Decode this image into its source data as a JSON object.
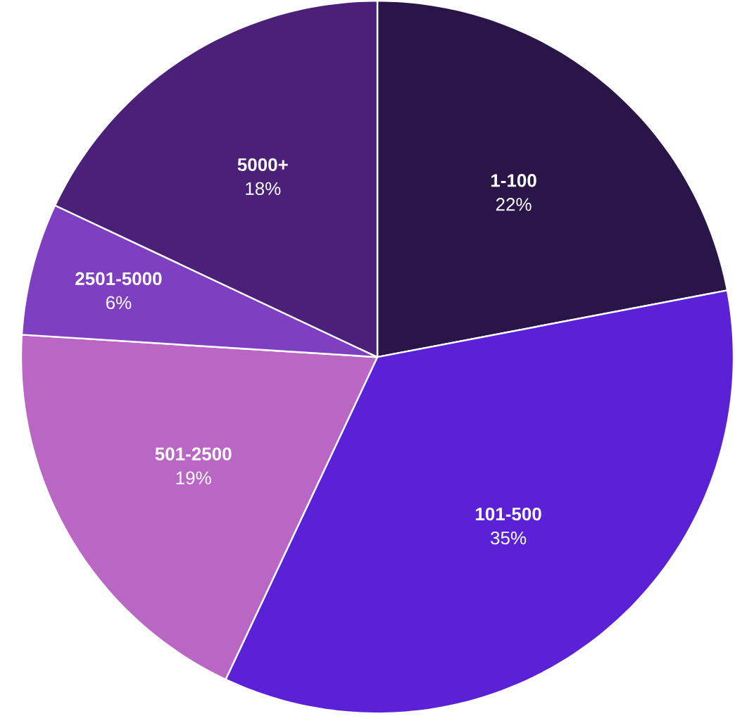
{
  "chart_data": {
    "type": "pie",
    "categories": [
      "1-100",
      "101-500",
      "501-2500",
      "2501-5000",
      "5000+"
    ],
    "values": [
      22,
      35,
      19,
      6,
      18
    ],
    "colors": [
      "#2a1548",
      "#5b21d6",
      "#b966c5",
      "#7e3fc0",
      "#4b2079"
    ],
    "value_labels": [
      "22%",
      "35%",
      "19%",
      "6%",
      "18%"
    ]
  }
}
